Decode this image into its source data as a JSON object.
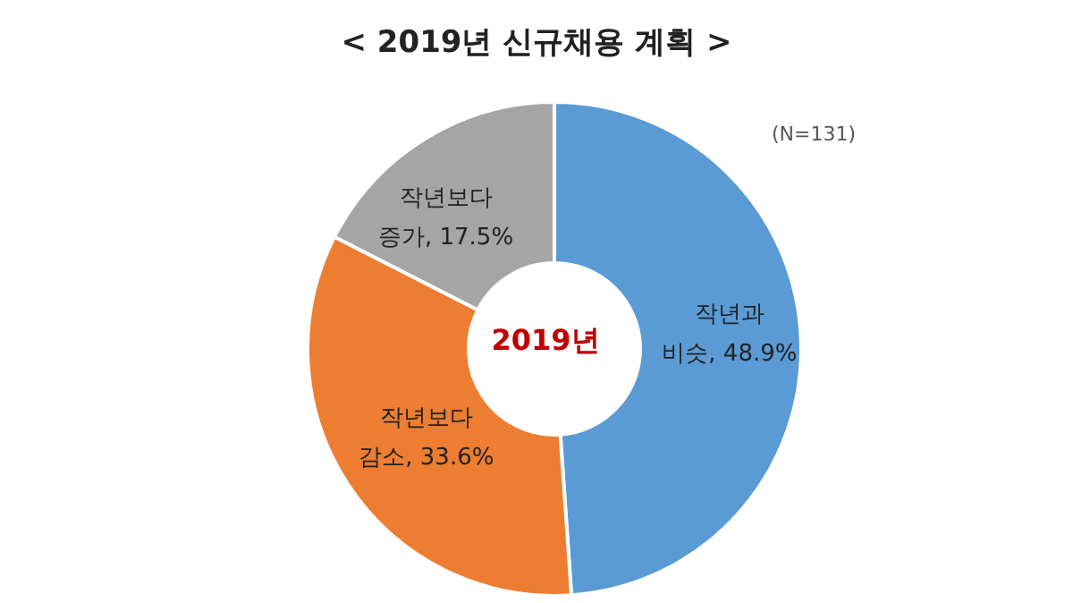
{
  "chart_data": {
    "type": "donut",
    "title": "< 2019년 신규채용 계획 >",
    "categories": [
      "작년과 비슷",
      "작년보다 감소",
      "작년보다 증가"
    ],
    "value_labels": [
      "48.9%",
      "33.6%",
      "17.5%"
    ],
    "data_labels": true,
    "values": [
      48.9,
      33.6,
      17.5
    ],
    "colors": [
      "#5b9bd5",
      "#ed7d31",
      "#a5a5a5"
    ],
    "annotations": [
      "2019년",
      "(N=131)"
    ]
  }
}
